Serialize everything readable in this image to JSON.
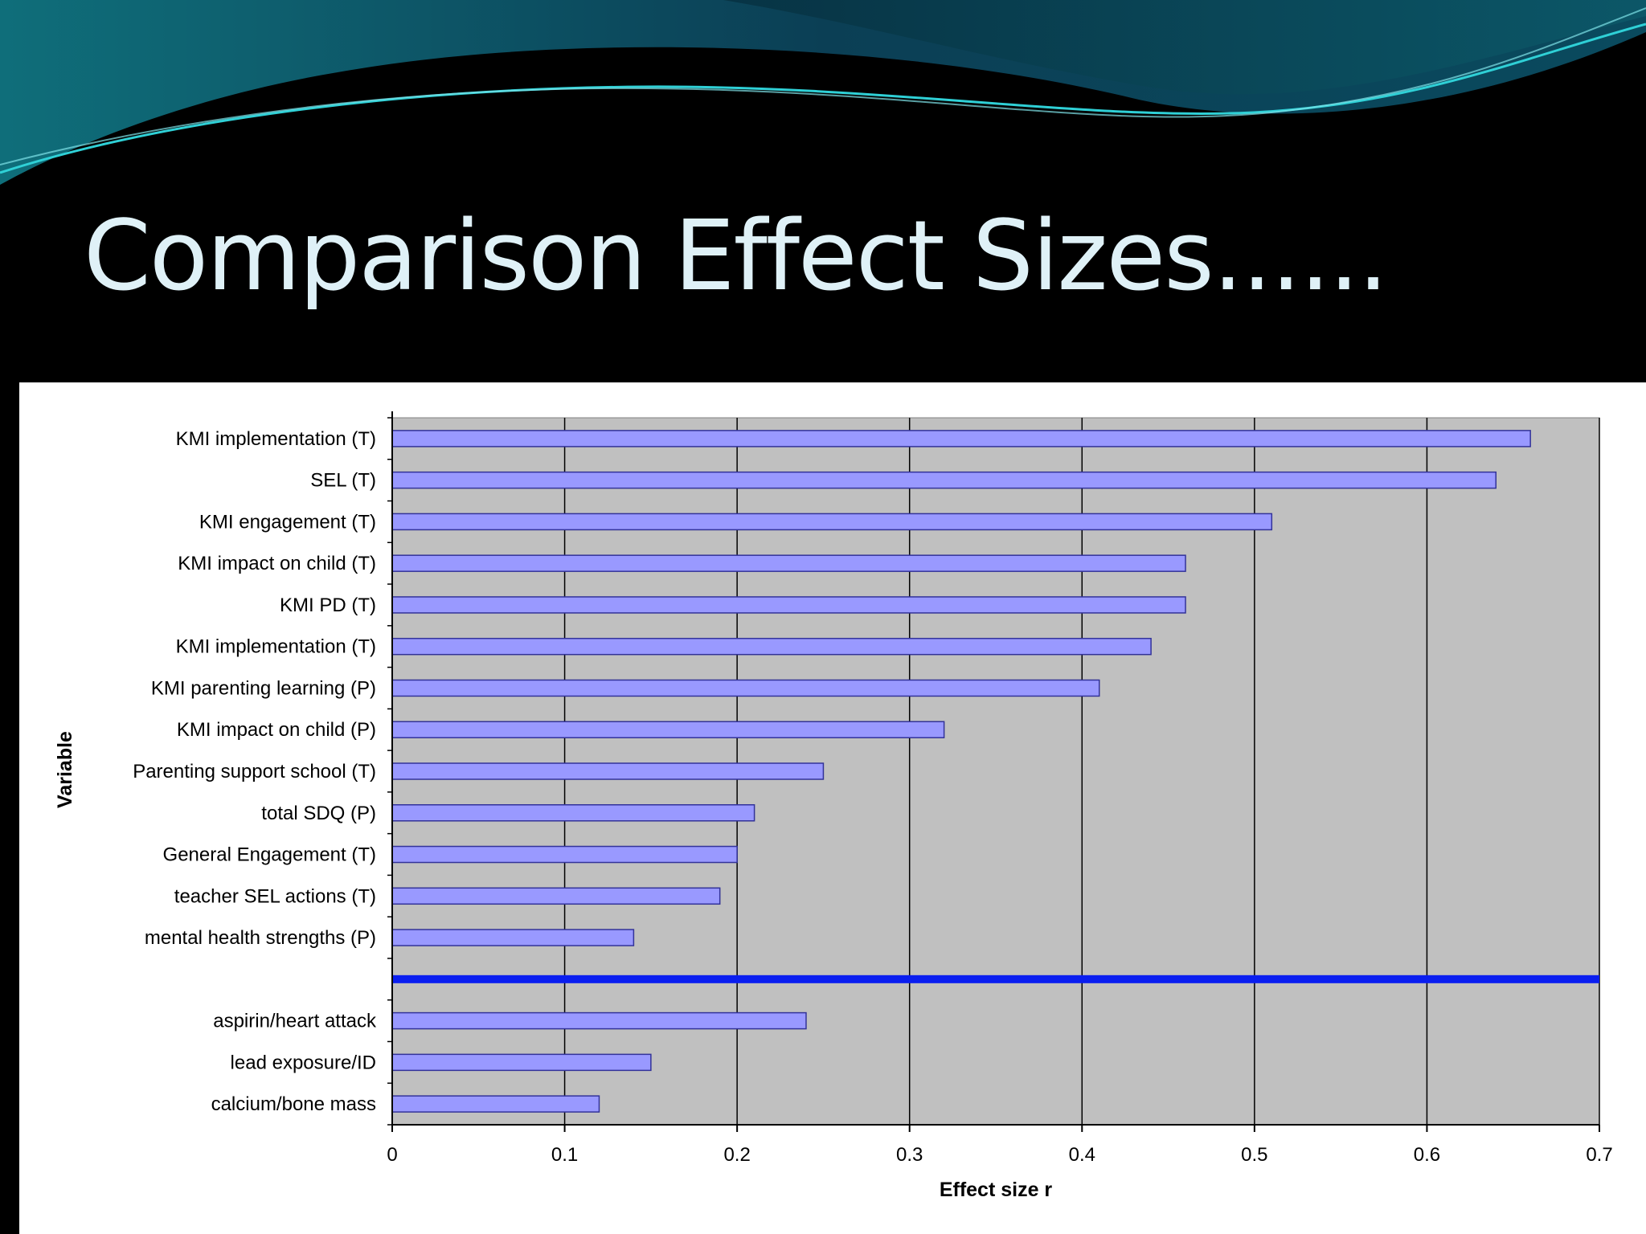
{
  "slide": {
    "title": "Comparison Effect Sizes......"
  },
  "colors": {
    "background": "#000000",
    "title": "#dff1f7",
    "bar_fill": "#9999ff",
    "bar_stroke": "#333399",
    "plot_area": "#c0c0c0",
    "separator": "#0a1ef0"
  },
  "chart_data": {
    "type": "bar",
    "orientation": "horizontal",
    "categories": [
      "KMI implementation (T)",
      "SEL (T)",
      "KMI engagement (T)",
      "KMI impact on child (T)",
      "KMI PD (T)",
      "KMI implementation (T)",
      "KMI parenting learning  (P)",
      "KMI impact on child (P)",
      "Parenting support school (T)",
      "total SDQ (P)",
      "General Engagement (T)",
      "teacher SEL actions (T)",
      "mental health strengths (P)",
      "",
      "aspirin/heart attack",
      "lead exposure/ID",
      "calcium/bone mass"
    ],
    "values": [
      0.66,
      0.64,
      0.51,
      0.46,
      0.46,
      0.44,
      0.41,
      0.32,
      0.25,
      0.21,
      0.2,
      0.19,
      0.14,
      null,
      0.24,
      0.15,
      0.12
    ],
    "separator_index": 13,
    "xlabel": "Effect size r",
    "ylabel": "Variable",
    "xlim": [
      0,
      0.7
    ],
    "xticks": [
      "0",
      "0.1",
      "0.2",
      "0.3",
      "0.4",
      "0.5",
      "0.6",
      "0.7"
    ],
    "grid": "vertical"
  }
}
